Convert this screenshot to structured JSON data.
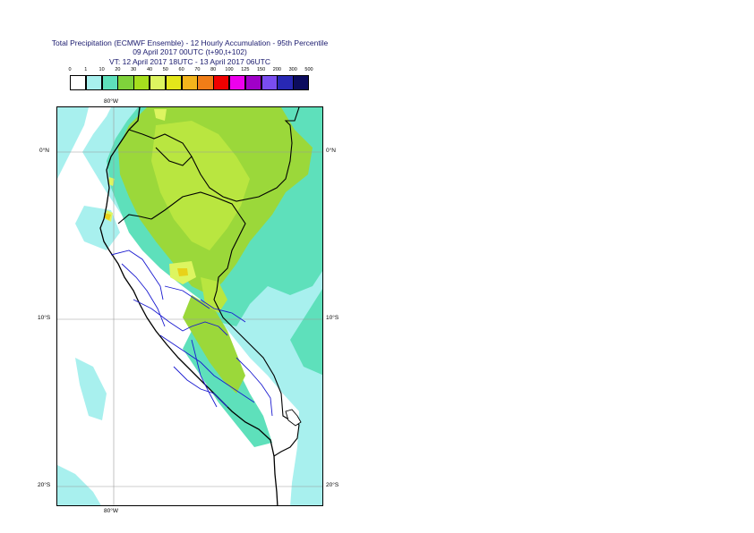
{
  "title": {
    "line1": "Total Precipitation (ECMWF Ensemble) - 12 Hourly Accumulation - 95th Percentile",
    "line2": "09 April 2017 00UTC (t+90,t+102)",
    "line3": "VT: 12 April 2017 18UTC - 13 April 2017 06UTC"
  },
  "legend": {
    "levels": [
      "0",
      "1",
      "10",
      "20",
      "30",
      "40",
      "50",
      "60",
      "70",
      "80",
      "100",
      "125",
      "150",
      "200",
      "300",
      "500"
    ],
    "colors": [
      "#ffffff",
      "#a8f0ee",
      "#5ee0bb",
      "#7fd23b",
      "#a6de1e",
      "#ddf560",
      "#e3e61a",
      "#f3b41c",
      "#f07d17",
      "#f00000",
      "#ee00ee",
      "#a000c8",
      "#7a4df0",
      "#2828b4",
      "#0c0c5e"
    ]
  },
  "map": {
    "lon_labels": {
      "top": "80°W",
      "bottom": "80°W"
    },
    "lat_labels": [
      "0°N",
      "10°S",
      "20°S"
    ],
    "colors": {
      "ocean_light": "#a8f0ee",
      "band_teal": "#5ee0bb",
      "land_green": "#9bd83a",
      "land_lime": "#b9e640",
      "peak_yellow": "#ddf560",
      "peak_orange": "#e8d21a",
      "border_black": "#000000",
      "region_blue": "#1a1ad0",
      "grid_gray": "#9a9a9a"
    }
  }
}
